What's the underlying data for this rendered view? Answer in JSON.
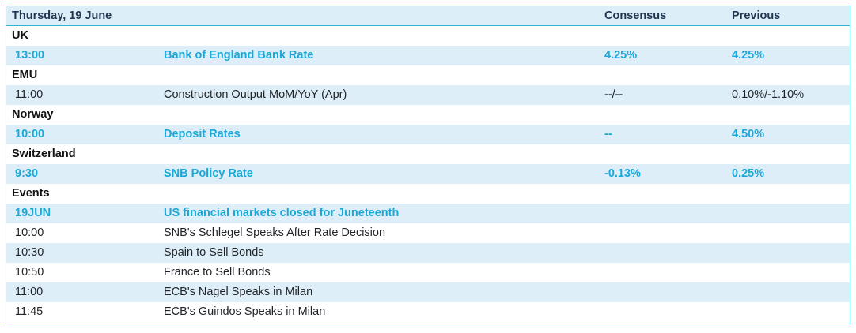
{
  "header": {
    "date": "Thursday, 19 June",
    "consensus": "Consensus",
    "previous": "Previous"
  },
  "sections": {
    "uk": {
      "name": "UK",
      "rows": [
        {
          "time": "13:00",
          "event": "Bank of England Bank Rate",
          "consensus": "4.25%",
          "previous": "4.25%"
        }
      ]
    },
    "emu": {
      "name": "EMU",
      "rows": [
        {
          "time": "11:00",
          "event": "Construction Output MoM/YoY (Apr)",
          "consensus": "--/--",
          "previous": "0.10%/-1.10%"
        }
      ]
    },
    "norway": {
      "name": "Norway",
      "rows": [
        {
          "time": "10:00",
          "event": "Deposit Rates",
          "consensus": "--",
          "previous": "4.50%"
        }
      ]
    },
    "switzerland": {
      "name": "Switzerland",
      "rows": [
        {
          "time": "9:30",
          "event": "SNB Policy Rate",
          "consensus": "-0.13%",
          "previous": "0.25%"
        }
      ]
    },
    "events": {
      "name": "Events",
      "rows": [
        {
          "time": "19JUN",
          "event": "US financial markets closed for Juneteenth"
        },
        {
          "time": "10:00",
          "event": "SNB's Schlegel Speaks After Rate Decision"
        },
        {
          "time": "10:30",
          "event": "Spain to Sell Bonds"
        },
        {
          "time": "10:50",
          "event": "France to Sell Bonds"
        },
        {
          "time": "11:00",
          "event": "ECB's Nagel Speaks in Milan"
        },
        {
          "time": "11:45",
          "event": "ECB's Guindos Speaks in Milan"
        }
      ]
    }
  },
  "colors": {
    "border": "#2eb4d6",
    "highlight_text": "#19a9d8",
    "row_shade": "#deeef8",
    "header_bg": "#dceef8"
  }
}
